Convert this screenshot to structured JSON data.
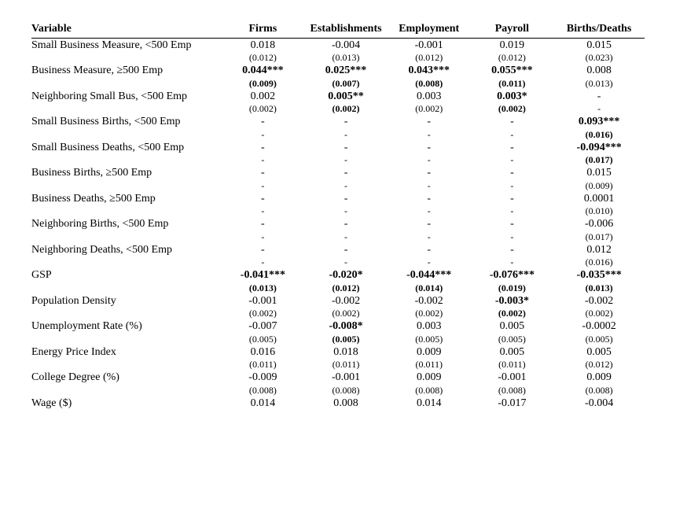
{
  "headers": {
    "variable": "Variable",
    "c1": "Firms",
    "c2": "Establishments",
    "c3": "Employment",
    "c4": "Payroll",
    "c5": "Births/Deaths"
  },
  "rows": [
    {
      "label": "Small Business Measure, <500 Emp",
      "est": [
        {
          "v": "0.018"
        },
        {
          "v": "-0.004"
        },
        {
          "v": "-0.001"
        },
        {
          "v": "0.019"
        },
        {
          "v": "0.015"
        }
      ],
      "se": [
        {
          "v": "(0.012)"
        },
        {
          "v": "(0.013)"
        },
        {
          "v": "(0.012)"
        },
        {
          "v": "(0.012)"
        },
        {
          "v": "(0.023)"
        }
      ]
    },
    {
      "label": "Business Measure, ≥500 Emp",
      "est": [
        {
          "v": "0.044***",
          "b": true
        },
        {
          "v": "0.025***",
          "b": true
        },
        {
          "v": "0.043***",
          "b": true
        },
        {
          "v": "0.055***",
          "b": true
        },
        {
          "v": "0.008"
        }
      ],
      "se": [
        {
          "v": "(0.009)",
          "b": true
        },
        {
          "v": "(0.007)",
          "b": true
        },
        {
          "v": "(0.008)",
          "b": true
        },
        {
          "v": "(0.011)",
          "b": true
        },
        {
          "v": "(0.013)"
        }
      ]
    },
    {
      "label": "Neighboring Small Bus, <500 Emp",
      "est": [
        {
          "v": "0.002"
        },
        {
          "v": "0.005**",
          "b": true
        },
        {
          "v": "0.003"
        },
        {
          "v": "0.003*",
          "b": true
        },
        {
          "v": "-"
        }
      ],
      "se": [
        {
          "v": "(0.002)"
        },
        {
          "v": "(0.002)",
          "b": true
        },
        {
          "v": "(0.002)"
        },
        {
          "v": "(0.002)",
          "b": true
        },
        {
          "v": "-"
        }
      ]
    },
    {
      "label": "Small Business Births, <500 Emp",
      "est": [
        {
          "v": "-"
        },
        {
          "v": "-"
        },
        {
          "v": "-"
        },
        {
          "v": "-"
        },
        {
          "v": "0.093***",
          "b": true
        }
      ],
      "se": [
        {
          "v": "-"
        },
        {
          "v": "-"
        },
        {
          "v": "-"
        },
        {
          "v": "-"
        },
        {
          "v": "(0.016)",
          "b": true
        }
      ]
    },
    {
      "label": "Small Business Deaths, <500 Emp",
      "est": [
        {
          "v": "-"
        },
        {
          "v": "-"
        },
        {
          "v": "-"
        },
        {
          "v": "-"
        },
        {
          "v": "-0.094***",
          "b": true
        }
      ],
      "se": [
        {
          "v": "-"
        },
        {
          "v": "-"
        },
        {
          "v": "-"
        },
        {
          "v": "-"
        },
        {
          "v": "(0.017)",
          "b": true
        }
      ]
    },
    {
      "label": "Business Births, ≥500 Emp",
      "est": [
        {
          "v": "-"
        },
        {
          "v": "-"
        },
        {
          "v": "-"
        },
        {
          "v": "-"
        },
        {
          "v": "0.015"
        }
      ],
      "se": [
        {
          "v": "-"
        },
        {
          "v": "-"
        },
        {
          "v": "-"
        },
        {
          "v": "-"
        },
        {
          "v": "(0.009)"
        }
      ]
    },
    {
      "label": "Business Deaths, ≥500 Emp",
      "est": [
        {
          "v": "-"
        },
        {
          "v": "-"
        },
        {
          "v": "-"
        },
        {
          "v": "-"
        },
        {
          "v": "0.0001"
        }
      ],
      "se": [
        {
          "v": "-"
        },
        {
          "v": "-"
        },
        {
          "v": "-"
        },
        {
          "v": "-"
        },
        {
          "v": "(0.010)"
        }
      ]
    },
    {
      "label": "Neighboring Births, <500 Emp",
      "est": [
        {
          "v": "-"
        },
        {
          "v": "-"
        },
        {
          "v": "-"
        },
        {
          "v": "-"
        },
        {
          "v": "-0.006"
        }
      ],
      "se": [
        {
          "v": "-"
        },
        {
          "v": "-"
        },
        {
          "v": "-"
        },
        {
          "v": "-"
        },
        {
          "v": "(0.017)"
        }
      ]
    },
    {
      "label": "Neighboring Deaths, <500 Emp",
      "est": [
        {
          "v": "-"
        },
        {
          "v": "-"
        },
        {
          "v": "-"
        },
        {
          "v": "-"
        },
        {
          "v": "0.012"
        }
      ],
      "se": [
        {
          "v": "-"
        },
        {
          "v": "-"
        },
        {
          "v": "-"
        },
        {
          "v": "-"
        },
        {
          "v": "(0.016)"
        }
      ]
    },
    {
      "label": "GSP",
      "est": [
        {
          "v": "-0.041***",
          "b": true
        },
        {
          "v": "-0.020*",
          "b": true
        },
        {
          "v": "-0.044***",
          "b": true
        },
        {
          "v": "-0.076***",
          "b": true
        },
        {
          "v": "-0.035***",
          "b": true
        }
      ],
      "se": [
        {
          "v": "(0.013)",
          "b": true
        },
        {
          "v": "(0.012)",
          "b": true
        },
        {
          "v": "(0.014)",
          "b": true
        },
        {
          "v": "(0.019)",
          "b": true
        },
        {
          "v": "(0.013)",
          "b": true
        }
      ]
    },
    {
      "label": "Population Density",
      "est": [
        {
          "v": "-0.001"
        },
        {
          "v": "-0.002"
        },
        {
          "v": "-0.002"
        },
        {
          "v": "-0.003*",
          "b": true
        },
        {
          "v": "-0.002"
        }
      ],
      "se": [
        {
          "v": "(0.002)"
        },
        {
          "v": "(0.002)"
        },
        {
          "v": "(0.002)"
        },
        {
          "v": "(0.002)",
          "b": true
        },
        {
          "v": "(0.002)"
        }
      ]
    },
    {
      "label": "Unemployment Rate (%)",
      "est": [
        {
          "v": "-0.007"
        },
        {
          "v": "-0.008*",
          "b": true
        },
        {
          "v": "0.003"
        },
        {
          "v": "0.005"
        },
        {
          "v": "-0.0002"
        }
      ],
      "se": [
        {
          "v": "(0.005)"
        },
        {
          "v": "(0.005)",
          "b": true
        },
        {
          "v": "(0.005)"
        },
        {
          "v": "(0.005)"
        },
        {
          "v": "(0.005)"
        }
      ]
    },
    {
      "label": "Energy Price Index",
      "est": [
        {
          "v": "0.016"
        },
        {
          "v": "0.018"
        },
        {
          "v": "0.009"
        },
        {
          "v": "0.005"
        },
        {
          "v": "0.005"
        }
      ],
      "se": [
        {
          "v": "(0.011)"
        },
        {
          "v": "(0.011)"
        },
        {
          "v": "(0.011)"
        },
        {
          "v": "(0.011)"
        },
        {
          "v": "(0.012)"
        }
      ]
    },
    {
      "label": "College Degree (%)",
      "est": [
        {
          "v": "-0.009"
        },
        {
          "v": "-0.001"
        },
        {
          "v": "0.009"
        },
        {
          "v": "-0.001"
        },
        {
          "v": "0.009"
        }
      ],
      "se": [
        {
          "v": "(0.008)"
        },
        {
          "v": "(0.008)"
        },
        {
          "v": "(0.008)"
        },
        {
          "v": "(0.008)"
        },
        {
          "v": "(0.008)"
        }
      ]
    },
    {
      "label": "Wage ($)",
      "est": [
        {
          "v": "0.014"
        },
        {
          "v": "0.008"
        },
        {
          "v": "0.014"
        },
        {
          "v": "-0.017"
        },
        {
          "v": "-0.004"
        }
      ],
      "se": null
    }
  ]
}
